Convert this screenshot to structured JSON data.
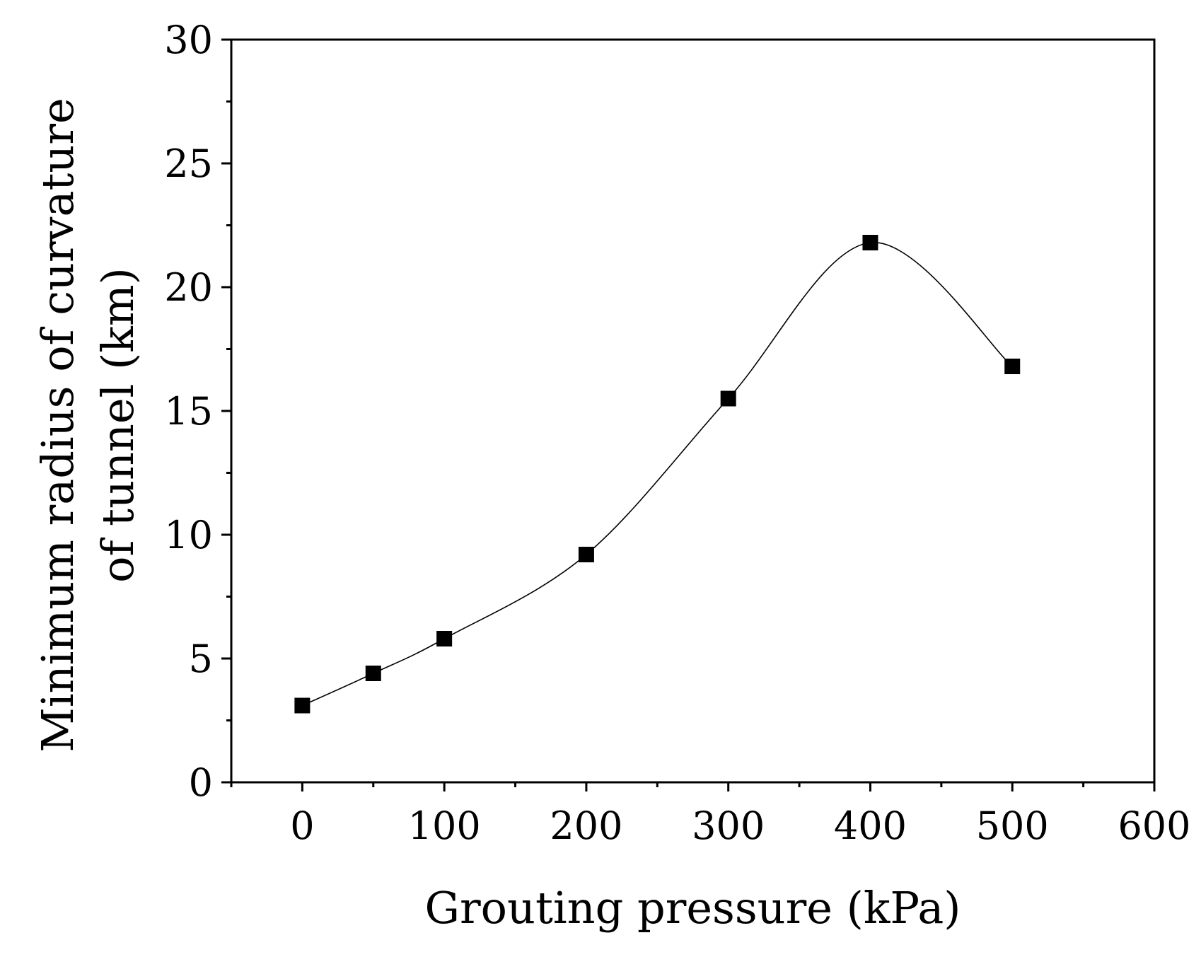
{
  "chart_data": {
    "type": "scatter",
    "title": "",
    "xlabel": "Grouting pressure (kPa)",
    "ylabel_lines": [
      "Minimum radius of curvature",
      "of tunnel (km)"
    ],
    "xlim": [
      -50,
      600
    ],
    "ylim": [
      0,
      30
    ],
    "x_ticks": [
      0,
      100,
      200,
      300,
      400,
      500,
      600
    ],
    "x_minor_ticks": [
      -50,
      50,
      150,
      250,
      350,
      450,
      550
    ],
    "y_ticks": [
      0,
      5,
      10,
      15,
      20,
      25,
      30
    ],
    "y_minor_ticks": [
      2.5,
      7.5,
      12.5,
      17.5,
      22.5,
      27.5
    ],
    "grid": false,
    "series": [
      {
        "name": "Minimum radius of curvature",
        "marker": "square",
        "color": "#000000",
        "line": "smooth",
        "x": [
          0,
          50,
          100,
          200,
          300,
          400,
          500
        ],
        "y": [
          3.1,
          4.4,
          5.8,
          9.2,
          15.5,
          21.8,
          16.8
        ]
      }
    ]
  }
}
